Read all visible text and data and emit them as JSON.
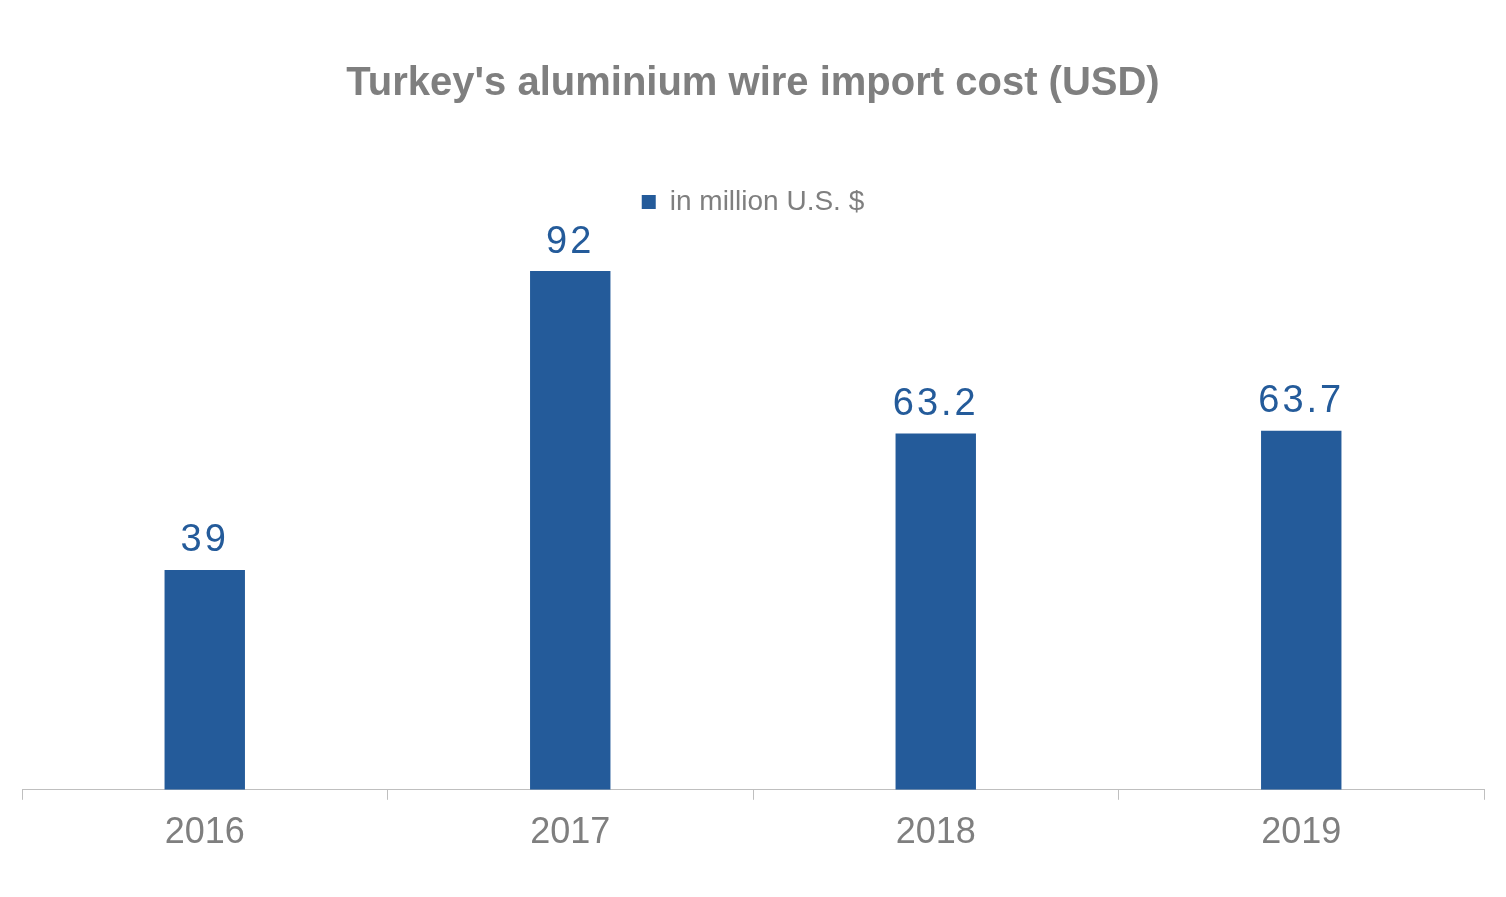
{
  "chart_data": {
    "type": "bar",
    "title": "Turkey's aluminium wire import cost (USD)",
    "categories": [
      "2016",
      "2017",
      "2018",
      "2019"
    ],
    "series": [
      {
        "name": "in million U.S. $",
        "color": "#245b9a",
        "values": [
          39,
          92,
          63.2,
          63.7
        ]
      }
    ],
    "data_labels": true,
    "legend": "top",
    "grid": false
  }
}
